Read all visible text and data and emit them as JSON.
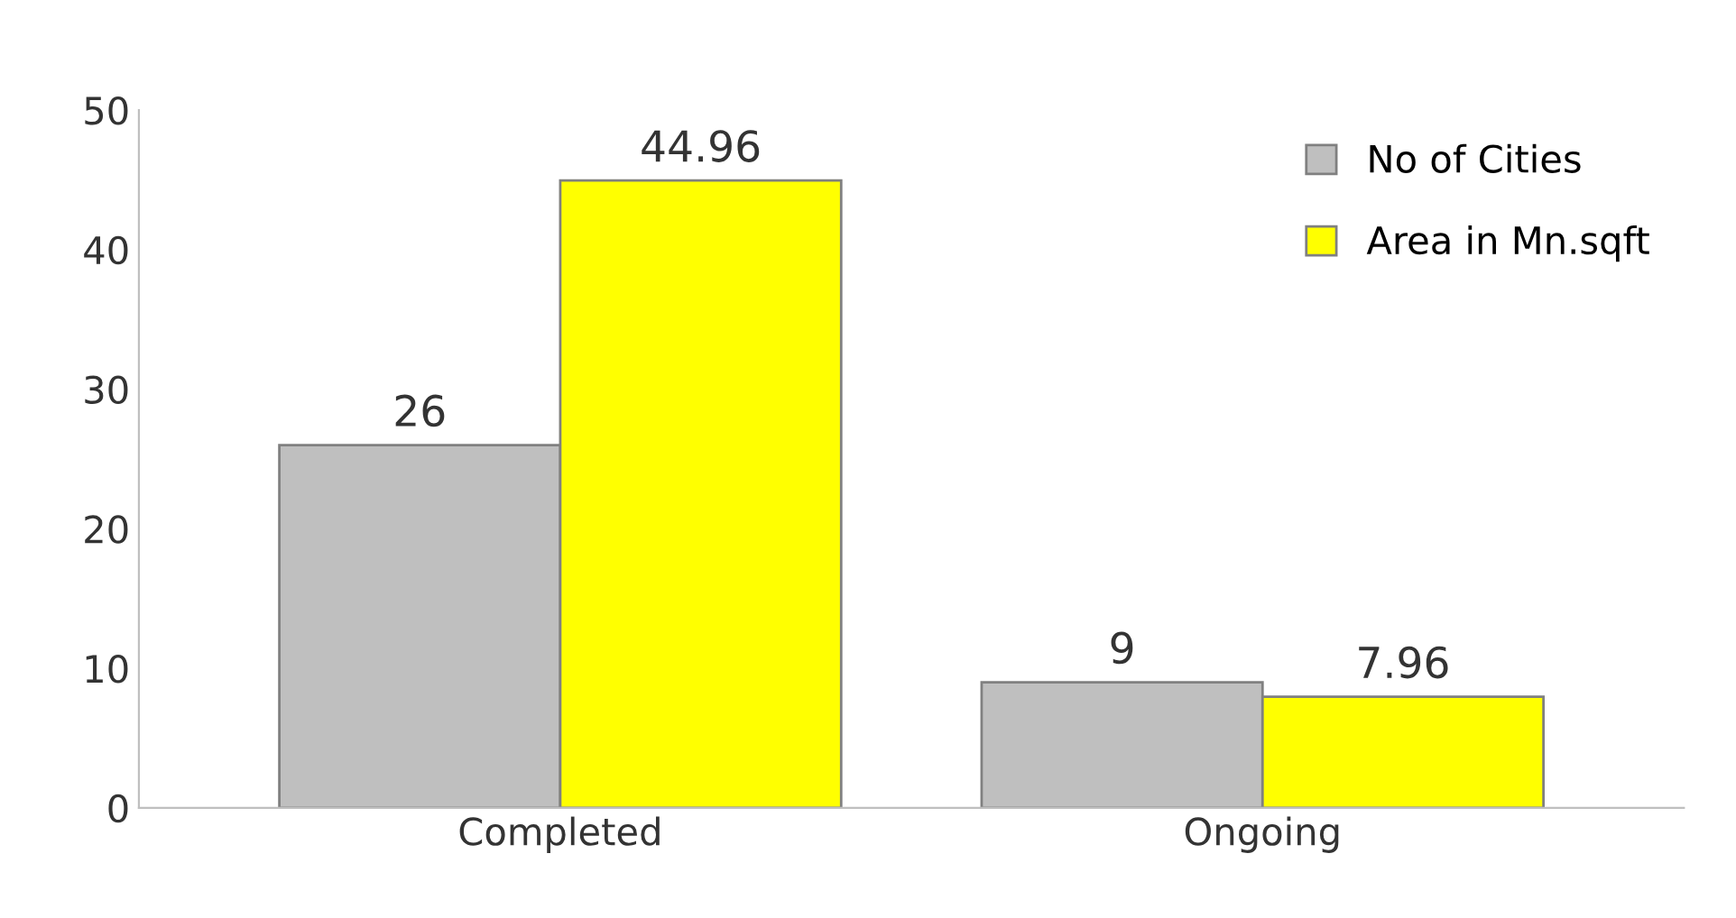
{
  "chart_data": {
    "type": "bar",
    "categories": [
      "Completed",
      "Ongoing"
    ],
    "series": [
      {
        "name": "No of Cities",
        "color": "#bfbfbf",
        "values": [
          26,
          9
        ]
      },
      {
        "name": "Area in Mn.sqft",
        "color": "#ffff00",
        "values": [
          44.96,
          7.96
        ]
      }
    ],
    "ylim": [
      0,
      50
    ],
    "yticks": [
      0,
      10,
      20,
      30,
      40,
      50
    ],
    "grid": false,
    "legend": "top right",
    "data_labels": true
  }
}
